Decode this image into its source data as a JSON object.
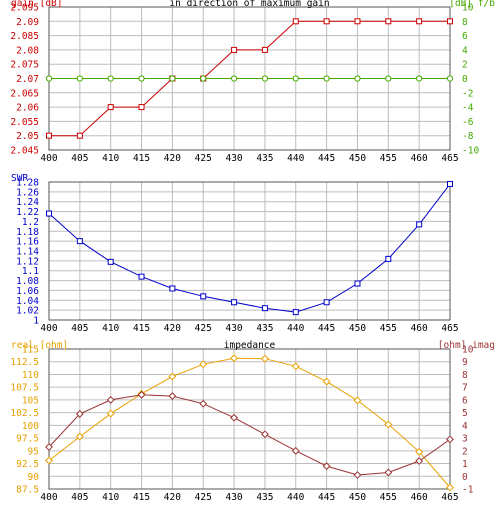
{
  "chart_data": [
    {
      "type": "line",
      "title": "in direction of maximum gain",
      "left_axis_label": "gain [dB]",
      "right_axis_label": "[dB] f/b",
      "x": [
        400,
        405,
        410,
        415,
        420,
        425,
        430,
        435,
        440,
        445,
        450,
        455,
        460,
        465
      ],
      "xlim": [
        400,
        465
      ],
      "x_ticks": [
        "400",
        "405",
        "410",
        "415",
        "420",
        "425",
        "430",
        "435",
        "440",
        "445",
        "450",
        "455",
        "460",
        "465"
      ],
      "ylim_left": [
        2.045,
        2.095
      ],
      "y_ticks_left": [
        "2.095",
        "2.09",
        "2.085",
        "2.08",
        "2.075",
        "2.07",
        "2.065",
        "2.06",
        "2.055",
        "2.05",
        "2.045"
      ],
      "ylim_right": [
        -10,
        10
      ],
      "y_ticks_right": [
        "10",
        "8",
        "6",
        "4",
        "2",
        "0",
        "-2",
        "-4",
        "-6",
        "-8",
        "-10"
      ],
      "grid": true,
      "series": [
        {
          "name": "gain [dB]",
          "axis": "left",
          "color": "#cc0000",
          "marker": "square",
          "values": [
            2.05,
            2.05,
            2.06,
            2.06,
            2.07,
            2.07,
            2.08,
            2.08,
            2.09,
            2.09,
            2.09,
            2.09,
            2.09,
            2.09
          ]
        },
        {
          "name": "[dB] f/b",
          "axis": "right",
          "color": "#44aa00",
          "marker": "circle",
          "values": [
            0,
            0,
            0,
            0,
            0,
            0,
            0,
            0,
            0,
            0,
            0,
            0,
            0,
            0
          ]
        }
      ]
    },
    {
      "type": "line",
      "title": "",
      "left_axis_label": "SWR",
      "x": [
        400,
        405,
        410,
        415,
        420,
        425,
        430,
        435,
        440,
        445,
        450,
        455,
        460,
        465
      ],
      "xlim": [
        400,
        465
      ],
      "x_ticks": [
        "400",
        "405",
        "410",
        "415",
        "420",
        "425",
        "430",
        "435",
        "440",
        "445",
        "450",
        "455",
        "460",
        "465"
      ],
      "ylim_left": [
        1,
        1.28
      ],
      "y_ticks_left": [
        "1.28",
        "1.26",
        "1.24",
        "1.22",
        "1.2",
        "1.18",
        "1.16",
        "1.14",
        "1.12",
        "1.1",
        "1.08",
        "1.06",
        "1.04",
        "1.02",
        "1"
      ],
      "grid": true,
      "series": [
        {
          "name": "SWR",
          "axis": "left",
          "color": "#0000cc",
          "marker": "square",
          "values": [
            1.216,
            1.16,
            1.118,
            1.088,
            1.064,
            1.048,
            1.036,
            1.024,
            1.016,
            1.036,
            1.074,
            1.124,
            1.194,
            1.276
          ]
        }
      ]
    },
    {
      "type": "line",
      "title": "impedance",
      "left_axis_label": "real [ohm]",
      "right_axis_label": "[ohm] imag",
      "x": [
        400,
        405,
        410,
        415,
        420,
        425,
        430,
        435,
        440,
        445,
        450,
        455,
        460,
        465
      ],
      "xlim": [
        400,
        465
      ],
      "x_ticks": [
        "400",
        "405",
        "410",
        "415",
        "420",
        "425",
        "430",
        "435",
        "440",
        "445",
        "450",
        "455",
        "460",
        "465"
      ],
      "ylim_left": [
        87.5,
        115
      ],
      "y_ticks_left": [
        "115",
        "112.5",
        "110",
        "107.5",
        "105",
        "102.5",
        "100",
        "97.5",
        "95",
        "92.5",
        "90",
        "87.5"
      ],
      "ylim_right": [
        -1,
        10
      ],
      "y_ticks_right": [
        "10",
        "9",
        "8",
        "7",
        "6",
        "5",
        "4",
        "3",
        "2",
        "1",
        "0",
        "-1"
      ],
      "grid": true,
      "series": [
        {
          "name": "real [ohm]",
          "axis": "left",
          "color": "#e8a000",
          "marker": "diamond",
          "values": [
            93.1,
            97.8,
            102.3,
            106.2,
            109.6,
            112.0,
            113.2,
            113.1,
            111.6,
            108.6,
            104.9,
            100.2,
            94.8,
            87.8
          ]
        },
        {
          "name": "[ohm] imag",
          "axis": "right",
          "color": "#993333",
          "marker": "diamond",
          "values": [
            2.3,
            4.9,
            6.0,
            6.4,
            6.3,
            5.7,
            4.6,
            3.3,
            2.0,
            0.8,
            0.1,
            0.3,
            1.2,
            2.9
          ]
        }
      ]
    }
  ]
}
